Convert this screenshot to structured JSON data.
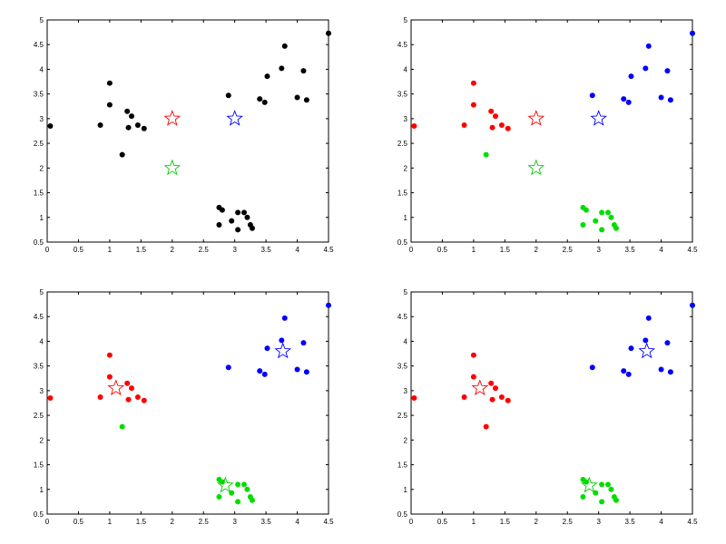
{
  "chart_data": [
    {
      "type": "scatter",
      "title": "",
      "xlabel": "",
      "ylabel": "",
      "xlim": [
        0,
        4.5
      ],
      "ylim": [
        0.5,
        5
      ],
      "xticks": [
        "0",
        "0.5",
        "1",
        "1.5",
        "2",
        "2.5",
        "3",
        "3.5",
        "4",
        "4.5"
      ],
      "yticks": [
        "0.5",
        "1",
        "1.5",
        "2",
        "2.5",
        "3",
        "3.5",
        "4",
        "4.5",
        "5"
      ],
      "grid": false,
      "series": [
        {
          "color": "#000000",
          "marker": "dot",
          "points": [
            [
              0.05,
              2.85
            ],
            [
              0.85,
              2.87
            ],
            [
              1.0,
              3.72
            ],
            [
              1.0,
              3.28
            ],
            [
              1.28,
              3.15
            ],
            [
              1.35,
              3.05
            ],
            [
              1.3,
              2.82
            ],
            [
              1.45,
              2.87
            ],
            [
              1.55,
              2.8
            ],
            [
              1.2,
              2.27
            ],
            [
              2.9,
              3.47
            ],
            [
              3.4,
              3.4
            ],
            [
              3.48,
              3.33
            ],
            [
              3.52,
              3.86
            ],
            [
              3.75,
              4.02
            ],
            [
              3.8,
              4.47
            ],
            [
              4.0,
              3.43
            ],
            [
              4.1,
              3.97
            ],
            [
              4.15,
              3.38
            ],
            [
              4.5,
              4.73
            ],
            [
              2.75,
              1.2
            ],
            [
              2.8,
              1.15
            ],
            [
              2.75,
              0.85
            ],
            [
              2.95,
              0.93
            ],
            [
              3.05,
              1.1
            ],
            [
              3.15,
              1.1
            ],
            [
              3.2,
              1.0
            ],
            [
              3.05,
              0.75
            ],
            [
              3.25,
              0.85
            ],
            [
              3.28,
              0.78
            ]
          ]
        },
        {
          "color": "#ff0000",
          "marker": "star",
          "points": [
            [
              2.0,
              3.0
            ]
          ]
        },
        {
          "color": "#0000ff",
          "marker": "star",
          "points": [
            [
              3.0,
              3.0
            ]
          ]
        },
        {
          "color": "#00cc00",
          "marker": "star",
          "points": [
            [
              2.0,
              2.0
            ]
          ]
        }
      ]
    },
    {
      "type": "scatter",
      "title": "",
      "xlabel": "",
      "ylabel": "",
      "xlim": [
        0,
        4.5
      ],
      "ylim": [
        0.5,
        5
      ],
      "xticks": [
        "0",
        "0.5",
        "1",
        "1.5",
        "2",
        "2.5",
        "3",
        "3.5",
        "4",
        "4.5"
      ],
      "yticks": [
        "0.5",
        "1",
        "1.5",
        "2",
        "2.5",
        "3",
        "3.5",
        "4",
        "4.5",
        "5"
      ],
      "grid": false,
      "series": [
        {
          "color": "#ff0000",
          "marker": "dot",
          "points": [
            [
              0.05,
              2.85
            ],
            [
              0.85,
              2.87
            ],
            [
              1.0,
              3.72
            ],
            [
              1.0,
              3.28
            ],
            [
              1.28,
              3.15
            ],
            [
              1.35,
              3.05
            ],
            [
              1.3,
              2.82
            ],
            [
              1.45,
              2.87
            ],
            [
              1.55,
              2.8
            ]
          ]
        },
        {
          "color": "#0000ff",
          "marker": "dot",
          "points": [
            [
              2.9,
              3.47
            ],
            [
              3.4,
              3.4
            ],
            [
              3.48,
              3.33
            ],
            [
              3.52,
              3.86
            ],
            [
              3.75,
              4.02
            ],
            [
              3.8,
              4.47
            ],
            [
              4.0,
              3.43
            ],
            [
              4.1,
              3.97
            ],
            [
              4.15,
              3.38
            ],
            [
              4.5,
              4.73
            ]
          ]
        },
        {
          "color": "#00dd00",
          "marker": "dot",
          "points": [
            [
              1.2,
              2.27
            ],
            [
              2.75,
              1.2
            ],
            [
              2.8,
              1.15
            ],
            [
              2.75,
              0.85
            ],
            [
              2.95,
              0.93
            ],
            [
              3.05,
              1.1
            ],
            [
              3.15,
              1.1
            ],
            [
              3.2,
              1.0
            ],
            [
              3.05,
              0.75
            ],
            [
              3.25,
              0.85
            ],
            [
              3.28,
              0.78
            ]
          ]
        },
        {
          "color": "#ff0000",
          "marker": "star",
          "points": [
            [
              2.0,
              3.0
            ]
          ]
        },
        {
          "color": "#0000ff",
          "marker": "star",
          "points": [
            [
              3.0,
              3.0
            ]
          ]
        },
        {
          "color": "#00cc00",
          "marker": "star",
          "points": [
            [
              2.0,
              2.0
            ]
          ]
        }
      ]
    },
    {
      "type": "scatter",
      "title": "",
      "xlabel": "",
      "ylabel": "",
      "xlim": [
        0,
        4.5
      ],
      "ylim": [
        0.5,
        5
      ],
      "xticks": [
        "0",
        "0.5",
        "1",
        "1.5",
        "2",
        "2.5",
        "3",
        "3.5",
        "4",
        "4.5"
      ],
      "yticks": [
        "0.5",
        "1",
        "1.5",
        "2",
        "2.5",
        "3",
        "3.5",
        "4",
        "4.5",
        "5"
      ],
      "grid": false,
      "series": [
        {
          "color": "#ff0000",
          "marker": "dot",
          "points": [
            [
              0.05,
              2.85
            ],
            [
              0.85,
              2.87
            ],
            [
              1.0,
              3.72
            ],
            [
              1.0,
              3.28
            ],
            [
              1.28,
              3.15
            ],
            [
              1.35,
              3.05
            ],
            [
              1.3,
              2.82
            ],
            [
              1.45,
              2.87
            ],
            [
              1.55,
              2.8
            ]
          ]
        },
        {
          "color": "#0000ff",
          "marker": "dot",
          "points": [
            [
              2.9,
              3.47
            ],
            [
              3.4,
              3.4
            ],
            [
              3.48,
              3.33
            ],
            [
              3.52,
              3.86
            ],
            [
              3.75,
              4.02
            ],
            [
              3.8,
              4.47
            ],
            [
              4.0,
              3.43
            ],
            [
              4.1,
              3.97
            ],
            [
              4.15,
              3.38
            ],
            [
              4.5,
              4.73
            ]
          ]
        },
        {
          "color": "#00dd00",
          "marker": "dot",
          "points": [
            [
              1.2,
              2.27
            ],
            [
              2.75,
              1.2
            ],
            [
              2.8,
              1.15
            ],
            [
              2.75,
              0.85
            ],
            [
              2.95,
              0.93
            ],
            [
              3.05,
              1.1
            ],
            [
              3.15,
              1.1
            ],
            [
              3.2,
              1.0
            ],
            [
              3.05,
              0.75
            ],
            [
              3.25,
              0.85
            ],
            [
              3.28,
              0.78
            ]
          ]
        },
        {
          "color": "#ff0000",
          "marker": "star",
          "points": [
            [
              1.1,
              3.05
            ]
          ]
        },
        {
          "color": "#0000ff",
          "marker": "star",
          "points": [
            [
              3.77,
              3.8
            ]
          ]
        },
        {
          "color": "#00cc00",
          "marker": "star",
          "points": [
            [
              2.85,
              1.08
            ]
          ]
        }
      ]
    },
    {
      "type": "scatter",
      "title": "",
      "xlabel": "",
      "ylabel": "",
      "xlim": [
        0,
        4.5
      ],
      "ylim": [
        0.5,
        5
      ],
      "xticks": [
        "0",
        "0.5",
        "1",
        "1.5",
        "2",
        "2.5",
        "3",
        "3.5",
        "4",
        "4.5"
      ],
      "yticks": [
        "0.5",
        "1",
        "1.5",
        "2",
        "2.5",
        "3",
        "3.5",
        "4",
        "4.5",
        "5"
      ],
      "grid": false,
      "series": [
        {
          "color": "#ff0000",
          "marker": "dot",
          "points": [
            [
              0.05,
              2.85
            ],
            [
              0.85,
              2.87
            ],
            [
              1.0,
              3.72
            ],
            [
              1.0,
              3.28
            ],
            [
              1.28,
              3.15
            ],
            [
              1.35,
              3.05
            ],
            [
              1.3,
              2.82
            ],
            [
              1.45,
              2.87
            ],
            [
              1.55,
              2.8
            ],
            [
              1.2,
              2.27
            ]
          ]
        },
        {
          "color": "#0000ff",
          "marker": "dot",
          "points": [
            [
              2.9,
              3.47
            ],
            [
              3.4,
              3.4
            ],
            [
              3.48,
              3.33
            ],
            [
              3.52,
              3.86
            ],
            [
              3.75,
              4.02
            ],
            [
              3.8,
              4.47
            ],
            [
              4.0,
              3.43
            ],
            [
              4.1,
              3.97
            ],
            [
              4.15,
              3.38
            ],
            [
              4.5,
              4.73
            ]
          ]
        },
        {
          "color": "#00dd00",
          "marker": "dot",
          "points": [
            [
              2.75,
              1.2
            ],
            [
              2.8,
              1.15
            ],
            [
              2.75,
              0.85
            ],
            [
              2.95,
              0.93
            ],
            [
              3.05,
              1.1
            ],
            [
              3.15,
              1.1
            ],
            [
              3.2,
              1.0
            ],
            [
              3.05,
              0.75
            ],
            [
              3.25,
              0.85
            ],
            [
              3.28,
              0.78
            ]
          ]
        },
        {
          "color": "#ff0000",
          "marker": "star",
          "points": [
            [
              1.1,
              3.05
            ]
          ]
        },
        {
          "color": "#0000ff",
          "marker": "star",
          "points": [
            [
              3.77,
              3.8
            ]
          ]
        },
        {
          "color": "#00cc00",
          "marker": "star",
          "points": [
            [
              2.85,
              1.08
            ]
          ]
        }
      ]
    }
  ]
}
